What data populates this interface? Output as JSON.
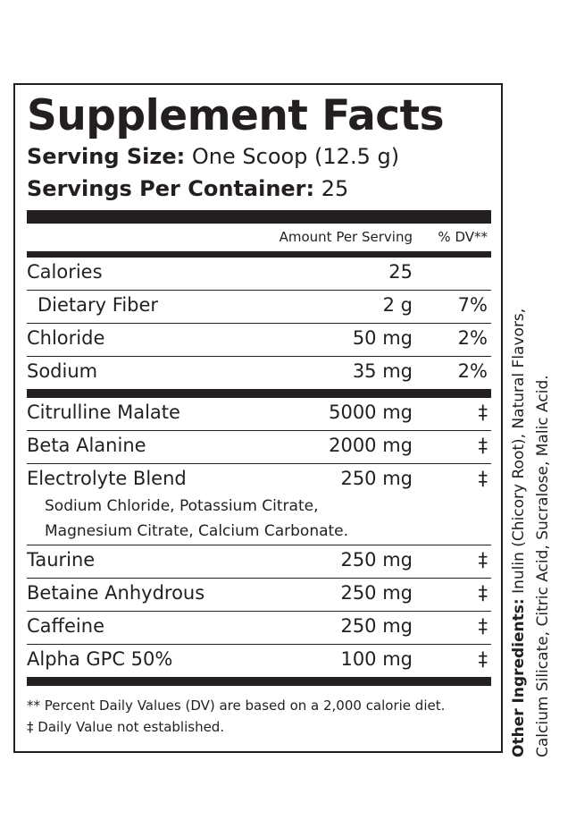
{
  "label": {
    "title": "Supplement Facts",
    "serving_size_label": "Serving Size:",
    "serving_size_value": "One Scoop (12.5 g)",
    "servings_label": "Servings Per Container:",
    "servings_value": "25",
    "header_amount": "Amount Per Serving",
    "header_dv": "% DV**"
  },
  "nutrients": [
    {
      "name": "Calories",
      "amount": "25",
      "dv": ""
    },
    {
      "name": "Dietary Fiber",
      "amount": "2 g",
      "dv": "7%"
    },
    {
      "name": "Chloride",
      "amount": "50 mg",
      "dv": "2%"
    },
    {
      "name": "Sodium",
      "amount": "35 mg",
      "dv": "2%"
    }
  ],
  "ingredients": [
    {
      "name": "Citrulline Malate",
      "amount": "5000 mg",
      "dv": "‡"
    },
    {
      "name": "Beta Alanine",
      "amount": "2000 mg",
      "dv": "‡"
    },
    {
      "name": "Electrolyte Blend",
      "amount": "250 mg",
      "dv": "‡",
      "sub_line_1": "Sodium Chloride, Potassium Citrate,",
      "sub_line_2": "Magnesium Citrate, Calcium Carbonate."
    },
    {
      "name": "Taurine",
      "amount": "250 mg",
      "dv": "‡"
    },
    {
      "name": "Betaine Anhydrous",
      "amount": "250 mg",
      "dv": "‡"
    },
    {
      "name": "Caffeine",
      "amount": "250 mg",
      "dv": "‡"
    },
    {
      "name": "Alpha GPC 50%",
      "amount": "100 mg",
      "dv": "‡"
    }
  ],
  "footnotes": {
    "dv_note": "** Percent Daily Values (DV) are based on a 2,000 calorie diet.",
    "dagger_note": "‡ Daily Value not established."
  },
  "other_ingredients": {
    "label": "Other Ingredients:",
    "line_1": " Inulin (Chicory Root), Natural Flavors,",
    "line_2": "Calcium Silicate, Citric Acid, Sucralose, Malic Acid."
  }
}
